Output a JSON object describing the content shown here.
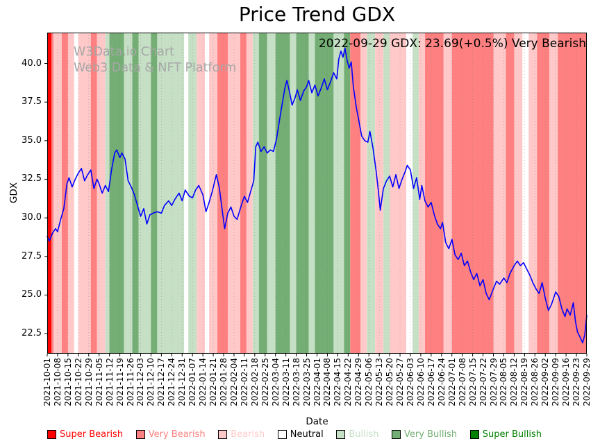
{
  "watermark": {
    "line1": "W3Data.io Chart",
    "line2": "Web3 Data & NFT Platform"
  },
  "annotation": {
    "text": "2022-09-29 GDX: 23.69(+0.5%) Very Bearish"
  },
  "chart_data": {
    "type": "line",
    "title": "Price Trend GDX",
    "xlabel": "Date",
    "ylabel": "GDX",
    "ylim": [
      21.2,
      42.0
    ],
    "yticks": [
      22.5,
      25.0,
      27.5,
      30.0,
      32.5,
      35.0,
      37.5,
      40.0
    ],
    "grid": "vertical-dotted",
    "legend_position": "bottom",
    "x_tick_labels": [
      "2021-10-01",
      "2021-10-08",
      "2021-10-15",
      "2021-10-22",
      "2021-10-29",
      "2021-11-05",
      "2021-11-12",
      "2021-11-19",
      "2021-11-26",
      "2021-12-03",
      "2021-12-10",
      "2021-12-17",
      "2021-12-24",
      "2021-12-31",
      "2022-01-07",
      "2022-01-14",
      "2022-01-21",
      "2022-01-28",
      "2022-02-04",
      "2022-02-11",
      "2022-02-18",
      "2022-02-25",
      "2022-03-04",
      "2022-03-11",
      "2022-03-18",
      "2022-03-25",
      "2022-04-01",
      "2022-04-08",
      "2022-04-15",
      "2022-04-22",
      "2022-04-29",
      "2022-05-06",
      "2022-05-13",
      "2022-05-20",
      "2022-05-27",
      "2022-06-03",
      "2022-06-10",
      "2022-06-17",
      "2022-06-24",
      "2022-07-01",
      "2022-07-08",
      "2022-07-15",
      "2022-07-22",
      "2022-07-29",
      "2022-08-05",
      "2022-08-12",
      "2022-08-19",
      "2022-08-26",
      "2022-09-02",
      "2022-09-09",
      "2022-09-16",
      "2022-09-23",
      "2022-09-29"
    ],
    "latest": {
      "date": "2022-09-29",
      "value": 23.69,
      "change_pct": "+0.5%",
      "sentiment": "Very Bearish"
    },
    "series": [
      {
        "name": "GDX price",
        "color": "#0000ff",
        "x": [
          0.0,
          0.2,
          0.5,
          0.8,
          1.0,
          1.3,
          1.6,
          1.9,
          2.1,
          2.4,
          2.7,
          3.0,
          3.3,
          3.6,
          3.9,
          4.2,
          4.5,
          4.8,
          5.0,
          5.3,
          5.6,
          5.9,
          6.2,
          6.5,
          6.7,
          7.0,
          7.2,
          7.5,
          7.8,
          8.1,
          8.4,
          8.7,
          9.0,
          9.3,
          9.6,
          9.9,
          10.2,
          10.6,
          11.0,
          11.3,
          11.7,
          12.0,
          12.3,
          12.7,
          13.0,
          13.3,
          13.7,
          14.0,
          14.3,
          14.6,
          15.0,
          15.3,
          15.6,
          15.9,
          16.3,
          16.6,
          16.9,
          17.1,
          17.4,
          17.7,
          18.0,
          18.3,
          18.7,
          19.0,
          19.3,
          19.6,
          19.9,
          20.1,
          20.3,
          20.6,
          20.9,
          21.2,
          21.5,
          21.8,
          22.1,
          22.4,
          22.7,
          22.9,
          23.1,
          23.4,
          23.6,
          23.9,
          24.1,
          24.4,
          24.7,
          25.0,
          25.2,
          25.5,
          25.8,
          26.1,
          26.4,
          26.7,
          27.0,
          27.3,
          27.6,
          27.9,
          28.1,
          28.3,
          28.5,
          28.7,
          28.9,
          29.1,
          29.3,
          29.5,
          29.8,
          30.0,
          30.3,
          30.6,
          30.9,
          31.1,
          31.4,
          31.7,
          31.9,
          32.1,
          32.4,
          32.7,
          33.0,
          33.3,
          33.6,
          33.9,
          34.2,
          34.5,
          34.7,
          35.0,
          35.3,
          35.6,
          35.9,
          36.1,
          36.4,
          36.7,
          37.0,
          37.3,
          37.6,
          37.9,
          38.1,
          38.4,
          38.7,
          39.0,
          39.3,
          39.6,
          39.9,
          40.2,
          40.5,
          40.8,
          41.1,
          41.4,
          41.7,
          42.0,
          42.3,
          42.6,
          43.0,
          43.3,
          43.6,
          44.0,
          44.3,
          44.6,
          45.0,
          45.3,
          45.6,
          45.9,
          46.2,
          46.5,
          46.8,
          47.1,
          47.4,
          47.7,
          48.0,
          48.3,
          48.6,
          49.0,
          49.3,
          49.6,
          49.9,
          50.1,
          50.4,
          50.7,
          50.9,
          51.1,
          51.4,
          51.6,
          51.8,
          52.0
        ],
        "y": [
          28.8,
          28.5,
          29.0,
          29.3,
          29.1,
          29.9,
          30.6,
          32.2,
          32.6,
          32.0,
          32.5,
          32.9,
          33.2,
          32.4,
          32.8,
          33.1,
          31.9,
          32.5,
          32.2,
          31.6,
          32.1,
          31.7,
          33.1,
          34.2,
          34.4,
          33.9,
          34.2,
          33.8,
          32.4,
          32.0,
          31.5,
          30.8,
          30.1,
          30.6,
          29.6,
          30.2,
          30.3,
          30.4,
          30.3,
          30.8,
          31.1,
          30.8,
          31.2,
          31.6,
          31.1,
          31.8,
          31.4,
          31.3,
          31.8,
          32.1,
          31.5,
          30.4,
          31.0,
          31.7,
          32.8,
          31.9,
          30.3,
          29.3,
          30.3,
          30.7,
          30.1,
          29.9,
          30.8,
          31.4,
          31.0,
          31.7,
          32.4,
          34.6,
          34.9,
          34.3,
          34.6,
          34.2,
          34.4,
          34.3,
          35.1,
          36.4,
          37.6,
          38.4,
          38.9,
          38.0,
          37.3,
          37.8,
          38.3,
          37.6,
          38.2,
          38.5,
          38.9,
          38.1,
          38.6,
          37.9,
          38.4,
          39.0,
          38.3,
          38.8,
          39.4,
          39.0,
          40.3,
          40.8,
          40.4,
          41.0,
          40.2,
          39.7,
          40.1,
          38.5,
          37.1,
          36.4,
          35.3,
          35.0,
          34.9,
          35.6,
          34.5,
          33.0,
          31.8,
          30.5,
          31.9,
          32.4,
          32.7,
          32.0,
          32.8,
          31.9,
          32.5,
          33.0,
          33.4,
          33.1,
          31.9,
          32.6,
          31.2,
          32.1,
          31.1,
          30.7,
          31.0,
          30.2,
          29.6,
          29.3,
          29.7,
          28.4,
          28.0,
          28.6,
          27.6,
          27.3,
          27.7,
          26.9,
          27.2,
          26.5,
          26.0,
          26.4,
          25.6,
          26.0,
          25.1,
          24.7,
          25.4,
          25.9,
          25.7,
          26.1,
          25.8,
          26.4,
          26.9,
          27.2,
          26.9,
          27.1,
          26.7,
          26.3,
          25.8,
          25.4,
          25.1,
          25.8,
          24.8,
          24.0,
          24.4,
          25.2,
          24.9,
          24.1,
          23.6,
          24.1,
          23.7,
          24.5,
          23.3,
          22.6,
          22.2,
          21.9,
          22.4,
          23.69
        ]
      }
    ],
    "sentiment_colors": {
      "super_bearish": "#ff0000",
      "very_bearish": "#ff8080",
      "bearish": "#ffc9c9",
      "neutral": "#ffffff",
      "bullish": "#c6e0c6",
      "very_bullish": "#74ae74",
      "super_bullish": "#008000"
    },
    "bands": [
      [
        0.0,
        0.4,
        "super_bearish"
      ],
      [
        0.4,
        0.6,
        "very_bearish"
      ],
      [
        0.6,
        1.4,
        "bearish"
      ],
      [
        1.4,
        2.0,
        "very_bearish"
      ],
      [
        2.0,
        2.6,
        "bearish"
      ],
      [
        2.6,
        3.0,
        "neutral"
      ],
      [
        3.0,
        4.2,
        "bearish"
      ],
      [
        4.2,
        4.8,
        "very_bearish"
      ],
      [
        4.8,
        5.6,
        "bearish"
      ],
      [
        5.6,
        6.0,
        "bullish"
      ],
      [
        6.0,
        7.4,
        "very_bullish"
      ],
      [
        7.4,
        8.2,
        "bullish"
      ],
      [
        8.2,
        8.8,
        "very_bullish"
      ],
      [
        8.8,
        10.0,
        "bullish"
      ],
      [
        10.0,
        10.6,
        "very_bullish"
      ],
      [
        10.6,
        13.2,
        "bullish"
      ],
      [
        13.2,
        13.6,
        "neutral"
      ],
      [
        13.6,
        14.4,
        "bullish"
      ],
      [
        14.4,
        15.2,
        "bearish"
      ],
      [
        15.2,
        15.6,
        "neutral"
      ],
      [
        15.6,
        16.4,
        "bearish"
      ],
      [
        16.4,
        17.4,
        "very_bearish"
      ],
      [
        17.4,
        18.6,
        "bearish"
      ],
      [
        18.6,
        19.2,
        "very_bearish"
      ],
      [
        19.2,
        19.8,
        "bearish"
      ],
      [
        19.8,
        20.4,
        "bullish"
      ],
      [
        20.4,
        21.2,
        "very_bullish"
      ],
      [
        21.2,
        22.0,
        "bullish"
      ],
      [
        22.0,
        23.4,
        "very_bullish"
      ],
      [
        23.4,
        24.0,
        "bullish"
      ],
      [
        24.0,
        25.2,
        "very_bullish"
      ],
      [
        25.2,
        25.8,
        "bullish"
      ],
      [
        25.8,
        27.6,
        "very_bullish"
      ],
      [
        27.6,
        28.6,
        "bullish"
      ],
      [
        28.6,
        29.2,
        "very_bullish"
      ],
      [
        29.2,
        30.2,
        "very_bearish"
      ],
      [
        30.2,
        30.8,
        "bearish"
      ],
      [
        30.8,
        31.6,
        "bullish"
      ],
      [
        31.6,
        32.4,
        "bearish"
      ],
      [
        32.4,
        33.0,
        "bullish"
      ],
      [
        33.0,
        34.6,
        "bearish"
      ],
      [
        34.6,
        35.2,
        "neutral"
      ],
      [
        35.2,
        35.8,
        "bullish"
      ],
      [
        35.8,
        36.4,
        "bearish"
      ],
      [
        36.4,
        38.2,
        "very_bearish"
      ],
      [
        38.2,
        39.0,
        "bearish"
      ],
      [
        39.0,
        43.0,
        "very_bearish"
      ],
      [
        43.0,
        44.2,
        "bearish"
      ],
      [
        44.2,
        45.0,
        "very_bearish"
      ],
      [
        45.0,
        45.8,
        "bearish"
      ],
      [
        45.8,
        46.4,
        "neutral"
      ],
      [
        46.4,
        47.2,
        "bearish"
      ],
      [
        47.2,
        48.4,
        "very_bearish"
      ],
      [
        48.4,
        49.2,
        "bearish"
      ],
      [
        49.2,
        52.0,
        "very_bearish"
      ]
    ],
    "legend": [
      {
        "label": "Super Bearish",
        "swatch": "#ff0000",
        "text": "#ff0000"
      },
      {
        "label": "Very Bearish",
        "swatch": "#ff8080",
        "text": "#ff8080"
      },
      {
        "label": "Bearish",
        "swatch": "#ffc9c9",
        "text": "#ffc9c9"
      },
      {
        "label": "Neutral",
        "swatch": "#ffffff",
        "text": "#000000"
      },
      {
        "label": "Bullish",
        "swatch": "#c6e0c6",
        "text": "#c6e0c6"
      },
      {
        "label": "Very Bullish",
        "swatch": "#74ae74",
        "text": "#74ae74"
      },
      {
        "label": "Super Bullish",
        "swatch": "#008000",
        "text": "#008000"
      }
    ]
  }
}
